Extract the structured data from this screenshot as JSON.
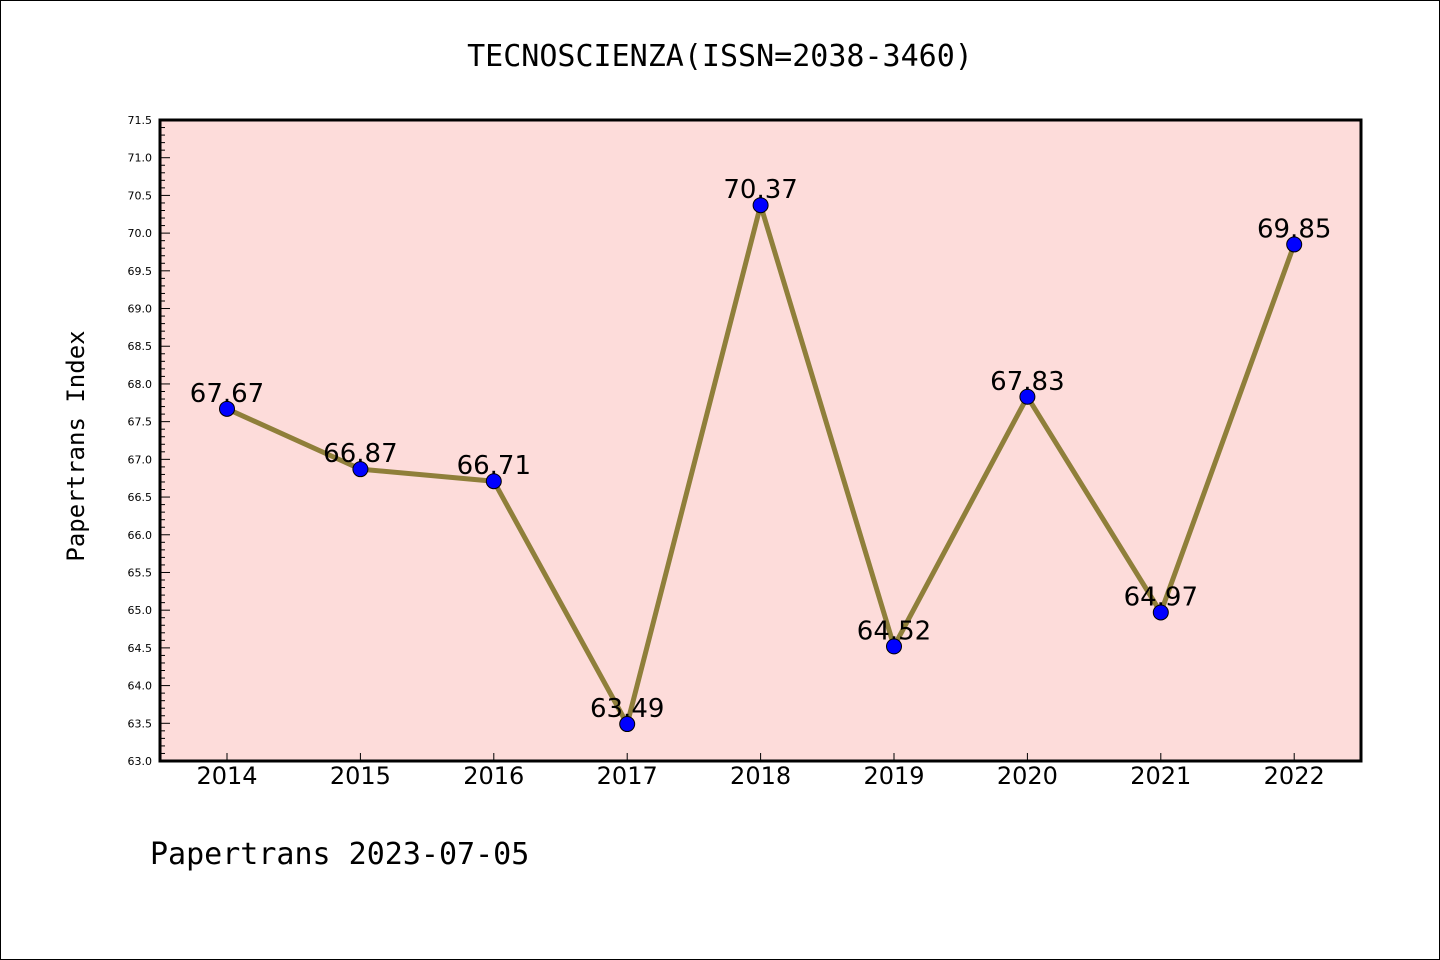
{
  "chart_data": {
    "type": "line",
    "title": "TECNOSCIENZA(ISSN=2038-3460)",
    "xlabel": "",
    "ylabel": "Papertrans Index",
    "categories": [
      "2014",
      "2015",
      "2016",
      "2017",
      "2018",
      "2019",
      "2020",
      "2021",
      "2022"
    ],
    "series": [
      {
        "values": [
          67.67,
          66.87,
          66.71,
          63.49,
          70.37,
          64.52,
          67.83,
          64.97,
          69.85
        ],
        "labels": [
          "67.67",
          "66.87",
          "66.71",
          "63.49",
          "70.37",
          "64.52",
          "67.83",
          "64.97",
          "69.85"
        ]
      }
    ],
    "ylim": [
      63.0,
      71.5
    ],
    "yticks": [
      "63.0",
      "63.5",
      "64.0",
      "64.5",
      "65.0",
      "65.5",
      "66.0",
      "66.5",
      "67.0",
      "67.5",
      "68.0",
      "68.5",
      "69.0",
      "69.5",
      "70.0",
      "70.5",
      "71.0",
      "71.5"
    ],
    "grid": false,
    "colors": {
      "plot_background": "#fddcda",
      "line": "#8f7f3a",
      "marker": "#0000ff"
    }
  },
  "footer": "Papertrans 2023-07-05"
}
